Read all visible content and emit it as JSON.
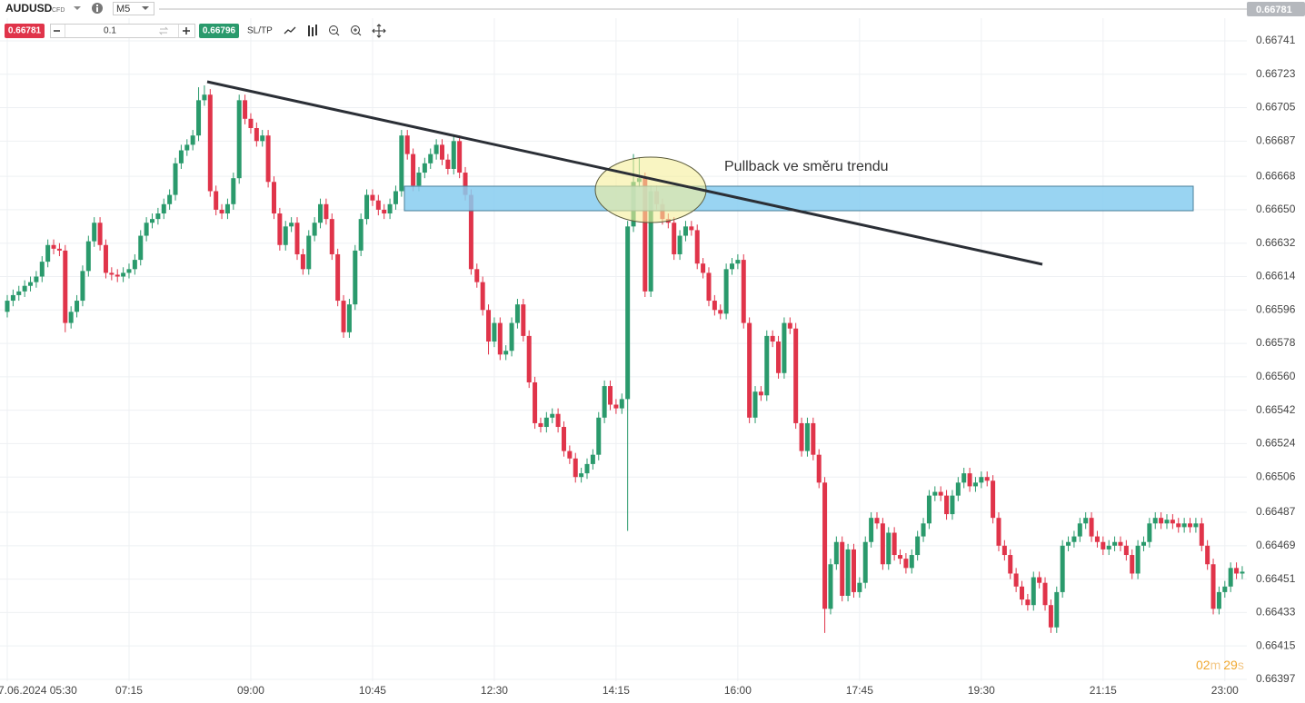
{
  "toolbar": {
    "symbol": "AUDUSD",
    "market": "CFD",
    "timeframe": "M5",
    "bid": "0.66781",
    "lot": "0.1",
    "ask": "0.66796",
    "sl_tp": "SL/TP",
    "last_price": "0.66781"
  },
  "countdown": {
    "minutes": "02",
    "minutes_unit": "m",
    "seconds": "29",
    "seconds_unit": "s"
  },
  "annotation": "Pullback ve směru trendu",
  "chart_data": {
    "type": "candlestick",
    "colors": {
      "up": "#2a9a6c",
      "down": "#e0344a"
    },
    "ylim": [
      0.66396,
      0.66763
    ],
    "yticks": [
      0.66741,
      0.66723,
      0.66705,
      0.66687,
      0.66668,
      {
        "value": 0.6665,
        "label": "0.66650"
      },
      0.66632,
      0.66614,
      0.66596,
      0.66578,
      {
        "value": 0.6656,
        "label": "0.66560"
      },
      0.66542,
      0.66524,
      0.66506,
      0.66487,
      0.66469,
      0.66451,
      0.66433,
      0.66415,
      0.66397
    ],
    "grid": true,
    "categories": [
      "7.06.2024 05:30",
      null,
      null,
      null,
      null,
      null,
      null,
      null,
      null,
      null,
      null,
      null,
      null,
      null,
      null,
      null,
      null,
      null,
      null,
      null,
      null,
      "07:15",
      null,
      null,
      null,
      null,
      null,
      null,
      null,
      null,
      null,
      null,
      null,
      null,
      null,
      null,
      null,
      null,
      null,
      null,
      null,
      null,
      "09:00",
      null,
      null,
      null,
      null,
      null,
      null,
      null,
      null,
      null,
      null,
      null,
      null,
      null,
      null,
      null,
      null,
      null,
      null,
      null,
      null,
      "10:45",
      null,
      null,
      null,
      null,
      null,
      null,
      null,
      null,
      null,
      null,
      null,
      null,
      null,
      null,
      null,
      null,
      null,
      null,
      null,
      null,
      "12:30",
      null,
      null,
      null,
      null,
      null,
      null,
      null,
      null,
      null,
      null,
      null,
      null,
      null,
      null,
      null,
      null,
      null,
      null,
      null,
      null,
      "14:15",
      null,
      null,
      null,
      null,
      null,
      null,
      null,
      null,
      null,
      null,
      null,
      null,
      null,
      null,
      null,
      null,
      null,
      null,
      null,
      null,
      "16:00",
      null,
      null,
      null,
      null,
      null,
      null,
      null,
      null,
      null,
      null,
      null,
      null,
      null,
      null,
      null,
      null,
      null,
      null,
      null,
      null,
      "17:45",
      null,
      null,
      null,
      null,
      null,
      null,
      null,
      null,
      null,
      null,
      null,
      null,
      null,
      null,
      null,
      null,
      null,
      null,
      null,
      null,
      "19:30",
      null,
      null,
      null,
      null,
      null,
      null,
      null,
      null,
      null,
      null,
      null,
      null,
      null,
      null,
      null,
      null,
      null,
      null,
      null,
      null,
      "21:15",
      null,
      null,
      null,
      null,
      null,
      null,
      null,
      null,
      null,
      null,
      null,
      null,
      null,
      null,
      null,
      null,
      null,
      null,
      null,
      null,
      "23:00",
      null,
      null,
      null
    ],
    "open": [
      0.66595,
      0.66601,
      0.66604,
      0.66606,
      0.66609,
      0.66611,
      0.66614,
      0.66622,
      0.66631,
      0.66629,
      0.66628,
      0.66589,
      0.66595,
      0.66601,
      0.66617,
      0.66633,
      0.66643,
      0.66631,
      0.66616,
      0.66615,
      0.66614,
      0.66616,
      0.66618,
      0.66623,
      0.66636,
      0.66643,
      0.66645,
      0.66648,
      0.66653,
      0.66658,
      0.66675,
      0.66682,
      0.66685,
      0.6669,
      0.66709,
      0.66712,
      0.6666,
      0.6665,
      0.66648,
      0.66653,
      0.66667,
      0.66709,
      0.66699,
      0.66694,
      0.66687,
      0.6669,
      0.66665,
      0.66648,
      0.66631,
      0.66641,
      0.66643,
      0.66626,
      0.66618,
      0.66636,
      0.66643,
      0.66653,
      0.66645,
      0.66626,
      0.66601,
      0.66584,
      0.66599,
      0.66628,
      0.66645,
      0.66658,
      0.66655,
      0.6665,
      0.66648,
      0.66653,
      0.6666,
      0.6669,
      0.6668,
      0.66663,
      0.6667,
      0.66675,
      0.6668,
      0.66685,
      0.66677,
      0.66672,
      0.66687,
      0.6667,
      0.66658,
      0.66618,
      0.66611,
      0.66596,
      0.66579,
      0.66589,
      0.66572,
      0.66574,
      0.66589,
      0.66599,
      0.66582,
      0.66557,
      0.66535,
      0.66533,
      0.66538,
      0.6654,
      0.66533,
      0.6652,
      0.66516,
      0.66506,
      0.66508,
      0.66513,
      0.66518,
      0.66538,
      0.66555,
      0.66545,
      0.66543,
      0.66548,
      0.66641,
      0.66665,
      0.66667,
      0.66606,
      0.6666,
      0.66653,
      0.66645,
      0.66643,
      0.66626,
      0.66636,
      0.66641,
      0.66639,
      0.66621,
      0.66616,
      0.66601,
      0.66596,
      0.66594,
      0.66618,
      0.66621,
      0.66623,
      0.66589,
      0.66538,
      0.66552,
      0.6655,
      0.66582,
      0.66579,
      0.66562,
      0.66589,
      0.66586,
      0.66535,
      0.6652,
      0.66535,
      0.66518,
      0.66503,
      0.66435,
      0.66459,
      0.66471,
      0.66442,
      0.66467,
      0.66444,
      0.66449,
      0.66471,
      0.66484,
      0.66481,
      0.66459,
      0.66476,
      0.66464,
      0.66462,
      0.66457,
      0.66464,
      0.66474,
      0.66481,
      0.66496,
      0.66498,
      0.66496,
      0.66486,
      0.66496,
      0.66503,
      0.66508,
      0.66501,
      0.66503,
      0.66506,
      0.66504,
      0.66484,
      0.66469,
      0.66464,
      0.66454,
      0.66447,
      0.6644,
      0.66437,
      0.66452,
      0.66449,
      0.66437,
      0.66425,
      0.66444,
      0.66469,
      0.66471,
      0.66474,
      0.66481,
      0.66484,
      0.66474,
      0.66471,
      0.66467,
      0.66469,
      0.66471,
      0.66469,
      0.66464,
      0.66454,
      0.66469,
      0.66471,
      0.66481,
      0.66484,
      0.66481,
      0.66483,
      0.66481,
      0.66479,
      0.66481,
      0.66479,
      0.66481,
      0.66469,
      0.66459,
      0.66435,
      0.66444,
      0.66447,
      0.66457,
      0.66454
    ],
    "high": [
      0.66604,
      0.66607,
      0.66609,
      0.66612,
      0.66614,
      0.66617,
      0.66625,
      0.66634,
      0.66634,
      0.66632,
      0.66631,
      0.66598,
      0.66604,
      0.6662,
      0.66636,
      0.66646,
      0.66646,
      0.66634,
      0.66619,
      0.66618,
      0.66619,
      0.66621,
      0.66626,
      0.66639,
      0.66646,
      0.66648,
      0.66651,
      0.66656,
      0.66661,
      0.66678,
      0.66685,
      0.66688,
      0.66693,
      0.66716,
      0.66717,
      0.66715,
      0.66663,
      0.66653,
      0.66656,
      0.6667,
      0.66712,
      0.66712,
      0.66702,
      0.66697,
      0.66693,
      0.66693,
      0.66668,
      0.66651,
      0.66644,
      0.66646,
      0.66646,
      0.66629,
      0.66639,
      0.66646,
      0.66656,
      0.66656,
      0.66648,
      0.66629,
      0.66604,
      0.66602,
      0.66631,
      0.66648,
      0.66661,
      0.66661,
      0.66658,
      0.66653,
      0.66656,
      0.66663,
      0.66693,
      0.66693,
      0.66683,
      0.66673,
      0.66678,
      0.66683,
      0.66688,
      0.66688,
      0.6668,
      0.6669,
      0.6669,
      0.66673,
      0.66661,
      0.66621,
      0.66614,
      0.66599,
      0.66592,
      0.66592,
      0.66577,
      0.66592,
      0.66602,
      0.66602,
      0.66585,
      0.6656,
      0.66538,
      0.66541,
      0.66543,
      0.66543,
      0.66536,
      0.66523,
      0.66519,
      0.66511,
      0.66516,
      0.66521,
      0.66541,
      0.66558,
      0.66558,
      0.66548,
      0.66551,
      0.66644,
      0.6668,
      0.66678,
      0.6667,
      0.66663,
      0.66663,
      0.66656,
      0.66648,
      0.66646,
      0.66639,
      0.66644,
      0.66644,
      0.66642,
      0.66624,
      0.66619,
      0.66604,
      0.66599,
      0.66621,
      0.66624,
      0.66626,
      0.66626,
      0.66592,
      0.66555,
      0.66555,
      0.66585,
      0.66585,
      0.66582,
      0.66592,
      0.66592,
      0.66589,
      0.66538,
      0.66538,
      0.66538,
      0.66521,
      0.66506,
      0.66462,
      0.66474,
      0.66474,
      0.6647,
      0.6647,
      0.66452,
      0.66474,
      0.66487,
      0.66487,
      0.66484,
      0.66479,
      0.66479,
      0.66467,
      0.66465,
      0.66467,
      0.66477,
      0.66484,
      0.66499,
      0.66501,
      0.66501,
      0.66499,
      0.66499,
      0.66506,
      0.66511,
      0.66511,
      0.66506,
      0.66509,
      0.66509,
      0.66507,
      0.66487,
      0.66472,
      0.66467,
      0.66457,
      0.6645,
      0.66443,
      0.66455,
      0.66455,
      0.66452,
      0.6644,
      0.66447,
      0.66472,
      0.66474,
      0.66477,
      0.66484,
      0.66487,
      0.66487,
      0.66477,
      0.66474,
      0.66472,
      0.66474,
      0.66474,
      0.66472,
      0.66467,
      0.66472,
      0.66474,
      0.66484,
      0.66487,
      0.66487,
      0.66486,
      0.66486,
      0.66484,
      0.66484,
      0.66484,
      0.66484,
      0.66484,
      0.66472,
      0.66462,
      0.66447,
      0.6645,
      0.6646,
      0.6646,
      0.66458
    ],
    "low": [
      0.66592,
      0.66598,
      0.66601,
      0.66603,
      0.66606,
      0.66608,
      0.66611,
      0.66619,
      0.66626,
      0.66625,
      0.66584,
      0.66586,
      0.66592,
      0.66598,
      0.66614,
      0.6663,
      0.66628,
      0.66613,
      0.66612,
      0.66611,
      0.66611,
      0.66613,
      0.66615,
      0.6662,
      0.66633,
      0.6664,
      0.66642,
      0.66645,
      0.6665,
      0.66655,
      0.66672,
      0.66679,
      0.66682,
      0.66687,
      0.66706,
      0.66657,
      0.66647,
      0.66645,
      0.66645,
      0.6665,
      0.66664,
      0.66696,
      0.66691,
      0.66684,
      0.66684,
      0.66662,
      0.66645,
      0.66628,
      0.66628,
      0.66638,
      0.66623,
      0.66615,
      0.66615,
      0.66633,
      0.6664,
      0.66642,
      0.66623,
      0.66598,
      0.66581,
      0.66581,
      0.66596,
      0.66625,
      0.66642,
      0.66652,
      0.66647,
      0.66645,
      0.66645,
      0.6665,
      0.66657,
      0.66677,
      0.6666,
      0.6666,
      0.66667,
      0.66672,
      0.66677,
      0.66674,
      0.66669,
      0.66669,
      0.66667,
      0.66655,
      0.66615,
      0.66608,
      0.66593,
      0.66572,
      0.66576,
      0.66569,
      0.66569,
      0.66571,
      0.66586,
      0.66579,
      0.66554,
      0.66532,
      0.6653,
      0.6653,
      0.66535,
      0.6653,
      0.66517,
      0.66513,
      0.66503,
      0.66503,
      0.66505,
      0.6651,
      0.66515,
      0.66535,
      0.66542,
      0.6654,
      0.6654,
      0.66477,
      0.66638,
      0.66662,
      0.66603,
      0.66603,
      0.6665,
      0.66642,
      0.6664,
      0.66623,
      0.66623,
      0.66633,
      0.66636,
      0.66618,
      0.66613,
      0.66598,
      0.66593,
      0.66591,
      0.66591,
      0.66615,
      0.66618,
      0.66586,
      0.66535,
      0.66535,
      0.66547,
      0.66547,
      0.66576,
      0.66559,
      0.66559,
      0.66583,
      0.66532,
      0.66517,
      0.66517,
      0.66515,
      0.665,
      0.66422,
      0.66432,
      0.66456,
      0.66439,
      0.66439,
      0.66441,
      0.66441,
      0.66446,
      0.66468,
      0.66478,
      0.66456,
      0.66456,
      0.66461,
      0.66459,
      0.66454,
      0.66454,
      0.66461,
      0.66471,
      0.66478,
      0.66493,
      0.66493,
      0.66483,
      0.66483,
      0.66493,
      0.665,
      0.66498,
      0.66498,
      0.665,
      0.66501,
      0.66481,
      0.66466,
      0.66461,
      0.66451,
      0.66444,
      0.66437,
      0.66434,
      0.66434,
      0.66446,
      0.66434,
      0.66422,
      0.66422,
      0.66441,
      0.66466,
      0.66468,
      0.66471,
      0.66478,
      0.66471,
      0.66468,
      0.66464,
      0.66464,
      0.66466,
      0.66466,
      0.66461,
      0.66451,
      0.66451,
      0.66466,
      0.66468,
      0.66478,
      0.66478,
      0.66478,
      0.66478,
      0.66476,
      0.66476,
      0.66476,
      0.66476,
      0.66466,
      0.66456,
      0.66432,
      0.66432,
      0.66441,
      0.66444,
      0.66451,
      0.66451
    ],
    "close": [
      0.66601,
      0.66604,
      0.66606,
      0.66609,
      0.66611,
      0.66614,
      0.66622,
      0.66631,
      0.66629,
      0.66628,
      0.66589,
      0.66595,
      0.66601,
      0.66617,
      0.66633,
      0.66643,
      0.66631,
      0.66616,
      0.66615,
      0.66614,
      0.66616,
      0.66618,
      0.66623,
      0.66636,
      0.66643,
      0.66645,
      0.66648,
      0.66653,
      0.66658,
      0.66675,
      0.66682,
      0.66685,
      0.6669,
      0.66709,
      0.66712,
      0.6666,
      0.6665,
      0.66648,
      0.66653,
      0.66667,
      0.66709,
      0.66699,
      0.66694,
      0.66687,
      0.6669,
      0.66665,
      0.66648,
      0.66631,
      0.66641,
      0.66643,
      0.66626,
      0.66618,
      0.66636,
      0.66643,
      0.66653,
      0.66645,
      0.66626,
      0.66601,
      0.66584,
      0.66599,
      0.66628,
      0.66645,
      0.66658,
      0.66655,
      0.6665,
      0.66648,
      0.66653,
      0.6666,
      0.6669,
      0.6668,
      0.66663,
      0.6667,
      0.66675,
      0.6668,
      0.66685,
      0.66677,
      0.66672,
      0.66687,
      0.6667,
      0.66658,
      0.66618,
      0.66611,
      0.66596,
      0.66579,
      0.66589,
      0.66572,
      0.66574,
      0.66589,
      0.66599,
      0.66582,
      0.66557,
      0.66535,
      0.66533,
      0.66538,
      0.6654,
      0.66533,
      0.6652,
      0.66516,
      0.66506,
      0.66508,
      0.66513,
      0.66518,
      0.66538,
      0.66555,
      0.66545,
      0.66543,
      0.66548,
      0.66641,
      0.66665,
      0.66667,
      0.66606,
      0.6666,
      0.66653,
      0.66645,
      0.66643,
      0.66626,
      0.66636,
      0.66641,
      0.66639,
      0.66621,
      0.66616,
      0.66601,
      0.66596,
      0.66594,
      0.66618,
      0.66621,
      0.66623,
      0.66589,
      0.66538,
      0.66552,
      0.6655,
      0.66582,
      0.66579,
      0.66562,
      0.66589,
      0.66586,
      0.66535,
      0.6652,
      0.66535,
      0.66518,
      0.66503,
      0.66435,
      0.66459,
      0.66471,
      0.66442,
      0.66467,
      0.66444,
      0.66449,
      0.66471,
      0.66484,
      0.66481,
      0.66459,
      0.66476,
      0.66464,
      0.66462,
      0.66457,
      0.66464,
      0.66474,
      0.66481,
      0.66496,
      0.66498,
      0.66496,
      0.66486,
      0.66496,
      0.66503,
      0.66508,
      0.66501,
      0.66503,
      0.66506,
      0.66504,
      0.66484,
      0.66469,
      0.66464,
      0.66454,
      0.66447,
      0.6644,
      0.66437,
      0.66452,
      0.66449,
      0.66437,
      0.66425,
      0.66444,
      0.66469,
      0.66471,
      0.66474,
      0.66481,
      0.66484,
      0.66474,
      0.66471,
      0.66467,
      0.66469,
      0.66471,
      0.66469,
      0.66464,
      0.66454,
      0.66469,
      0.66471,
      0.66481,
      0.66484,
      0.66481,
      0.66483,
      0.66481,
      0.66479,
      0.66481,
      0.66479,
      0.66481,
      0.66469,
      0.66459,
      0.66435,
      0.66444,
      0.66447,
      0.66457,
      0.66454,
      0.66455
    ]
  }
}
